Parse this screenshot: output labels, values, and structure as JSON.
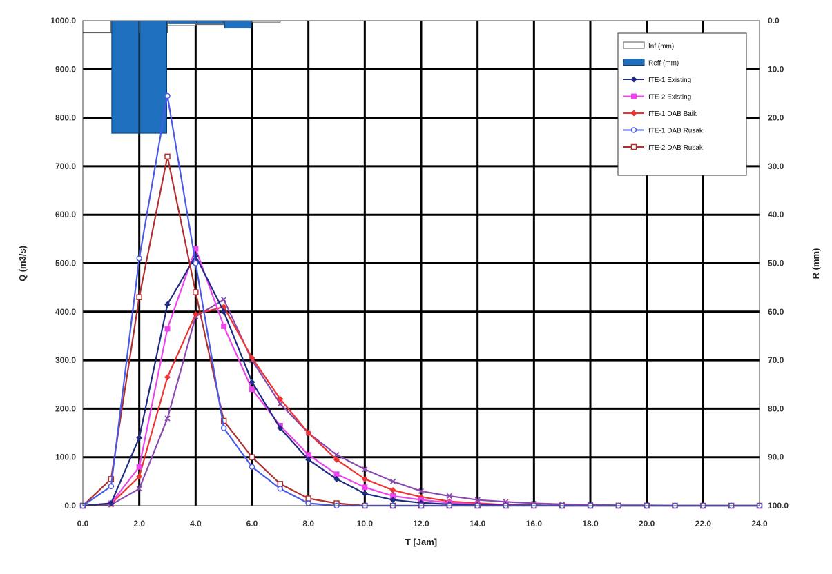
{
  "chart_data": {
    "type": "line",
    "xlabel": "T [Jam]",
    "ylabel_left": "Q (m3/s)",
    "ylabel_right": "R (mm)",
    "xlim": [
      0,
      24
    ],
    "ylim_left": [
      0,
      1000
    ],
    "ylim_right_inverted": [
      0,
      100
    ],
    "x_ticks": [
      "0.0",
      "2.0",
      "4.0",
      "6.0",
      "8.0",
      "10.0",
      "12.0",
      "14.0",
      "16.0",
      "18.0",
      "20.0",
      "22.0",
      "24.0"
    ],
    "y_ticks_left": [
      "0.0",
      "100.0",
      "200.0",
      "300.0",
      "400.0",
      "500.0",
      "600.0",
      "700.0",
      "800.0",
      "900.0",
      "1000.0"
    ],
    "y_ticks_right": [
      "100.0",
      "90.0",
      "80.0",
      "70.0",
      "60.0",
      "50.0",
      "40.0",
      "30.0",
      "20.0",
      "10.0",
      "0.0"
    ],
    "grid": true,
    "legend_position": "top-right",
    "x": [
      0,
      1,
      2,
      3,
      4,
      5,
      6,
      7,
      8,
      9,
      10,
      11,
      12,
      13,
      14,
      15,
      16,
      17,
      18,
      19,
      20,
      21,
      22,
      23,
      24
    ],
    "bars": [
      {
        "name": "Inf (mm)",
        "color": "#ffffff",
        "edge": "#555555",
        "x": [
          0,
          1,
          2,
          3,
          4,
          5,
          6
        ],
        "values": [
          2.5,
          2.5,
          2.5,
          1.0,
          0.8,
          0.5,
          0.3
        ]
      },
      {
        "name": "Reff (mm)",
        "color": "#1f6fbf",
        "edge": "#0a3e73",
        "x": [
          0,
          1,
          2,
          3,
          4,
          5,
          6
        ],
        "values": [
          0,
          23.2,
          23.2,
          0.6,
          0.6,
          1.5,
          0
        ]
      }
    ],
    "series": [
      {
        "name": "ITE-1 Existing",
        "color": "#1f2b80",
        "marker": "diamond",
        "values": [
          0,
          5,
          140,
          415,
          515,
          400,
          255,
          160,
          95,
          55,
          25,
          12,
          6,
          3,
          2,
          1,
          1,
          0,
          0,
          0,
          0,
          0,
          0,
          0,
          0
        ]
      },
      {
        "name": "ITE-2 Existing",
        "color": "#ee44ee",
        "marker": "square",
        "values": [
          0,
          5,
          80,
          365,
          530,
          370,
          240,
          165,
          105,
          65,
          38,
          20,
          12,
          6,
          3,
          2,
          1,
          0,
          0,
          0,
          0,
          0,
          0,
          0,
          0
        ]
      },
      {
        "name": "ITE-1 DAB Baik",
        "color": "#ee3333",
        "marker": "diamond",
        "values": [
          0,
          4,
          60,
          265,
          395,
          410,
          305,
          220,
          150,
          95,
          55,
          32,
          18,
          9,
          5,
          2,
          1,
          0,
          0,
          0,
          0,
          0,
          0,
          0,
          0
        ]
      },
      {
        "name": "ITE-1 DAB Rusak",
        "color": "#4a5ae8",
        "marker": "circle",
        "values": [
          0,
          40,
          510,
          845,
          500,
          160,
          80,
          35,
          5,
          0,
          0,
          0,
          0,
          0,
          0,
          0,
          0,
          0,
          0,
          0,
          0,
          0,
          0,
          0,
          0
        ]
      },
      {
        "name": "ITE-2 DAB Rusak",
        "color": "#b03030",
        "marker": "square-open",
        "values": [
          0,
          55,
          430,
          720,
          440,
          175,
          100,
          45,
          15,
          5,
          0,
          0,
          0,
          0,
          0,
          0,
          0,
          0,
          0,
          0,
          0,
          0,
          0,
          0,
          0
        ]
      },
      {
        "name": "",
        "color": "#8a4ab0",
        "marker": "x",
        "values": [
          0,
          2,
          35,
          180,
          390,
          425,
          300,
          210,
          150,
          105,
          75,
          50,
          30,
          20,
          12,
          8,
          5,
          3,
          2,
          1,
          1,
          0,
          0,
          0,
          0
        ]
      }
    ]
  }
}
